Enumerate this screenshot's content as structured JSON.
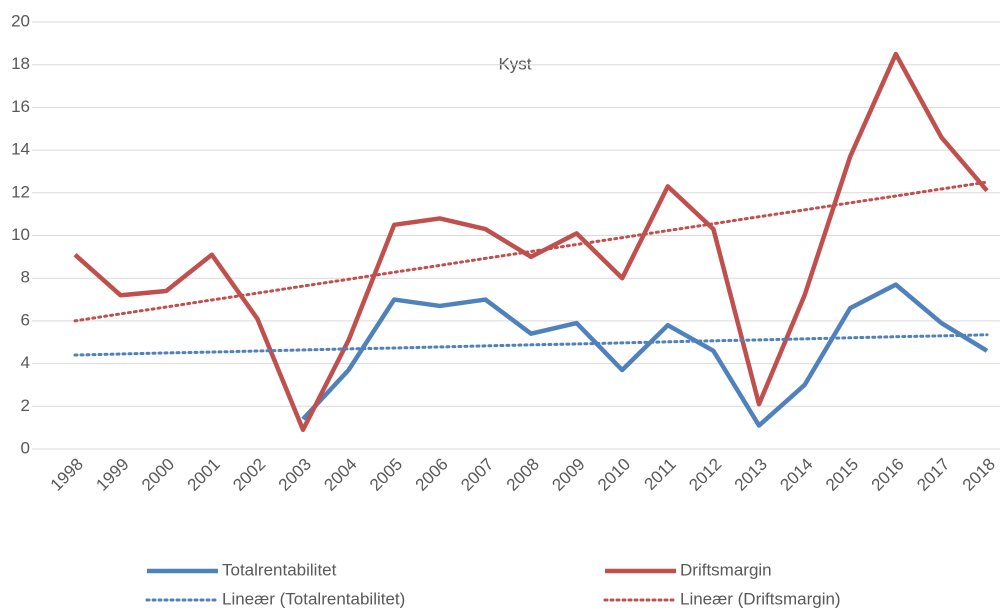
{
  "chart_data": {
    "type": "line",
    "title": "Kyst",
    "categories": [
      "1998",
      "1999",
      "2000",
      "2001",
      "2002",
      "2003",
      "2004",
      "2005",
      "2006",
      "2007",
      "2008",
      "2009",
      "2010",
      "2011",
      "2012",
      "2013",
      "2014",
      "2015",
      "2016",
      "2017",
      "2018"
    ],
    "series": [
      {
        "name": "Totalrentabilitet",
        "color": "#4f81bd",
        "dash": "solid",
        "values": [
          null,
          null,
          null,
          null,
          null,
          1.4,
          3.7,
          7.0,
          6.7,
          7.0,
          5.4,
          5.9,
          3.7,
          5.8,
          4.6,
          1.1,
          3.0,
          6.6,
          7.7,
          5.9,
          4.6
        ]
      },
      {
        "name": "Driftsmargin",
        "color": "#c0504d",
        "dash": "solid",
        "values": [
          9.1,
          7.2,
          7.4,
          9.1,
          6.1,
          0.9,
          5.1,
          10.5,
          10.8,
          10.3,
          9.0,
          10.1,
          8.0,
          12.3,
          10.3,
          2.1,
          7.2,
          13.7,
          18.5,
          14.6,
          12.1
        ]
      },
      {
        "name": "Lineær (Totalrentabilitet)",
        "color": "#4f81bd",
        "dash": "dotted",
        "values": [
          4.4,
          4.45,
          4.5,
          4.54,
          4.59,
          4.64,
          4.69,
          4.73,
          4.78,
          4.83,
          4.88,
          4.92,
          4.97,
          5.02,
          5.07,
          5.11,
          5.16,
          5.21,
          5.26,
          5.3,
          5.35
        ]
      },
      {
        "name": "Lineær (Driftsmargin)",
        "color": "#c0504d",
        "dash": "dotted",
        "values": [
          6.0,
          6.33,
          6.65,
          6.98,
          7.3,
          7.63,
          7.95,
          8.28,
          8.6,
          8.93,
          9.25,
          9.58,
          9.9,
          10.23,
          10.55,
          10.88,
          11.2,
          11.53,
          11.85,
          12.18,
          12.5
        ]
      }
    ],
    "ylim": [
      0,
      20
    ],
    "yticks": [
      0,
      2,
      4,
      6,
      8,
      10,
      12,
      14,
      16,
      18,
      20
    ],
    "grid": true
  }
}
